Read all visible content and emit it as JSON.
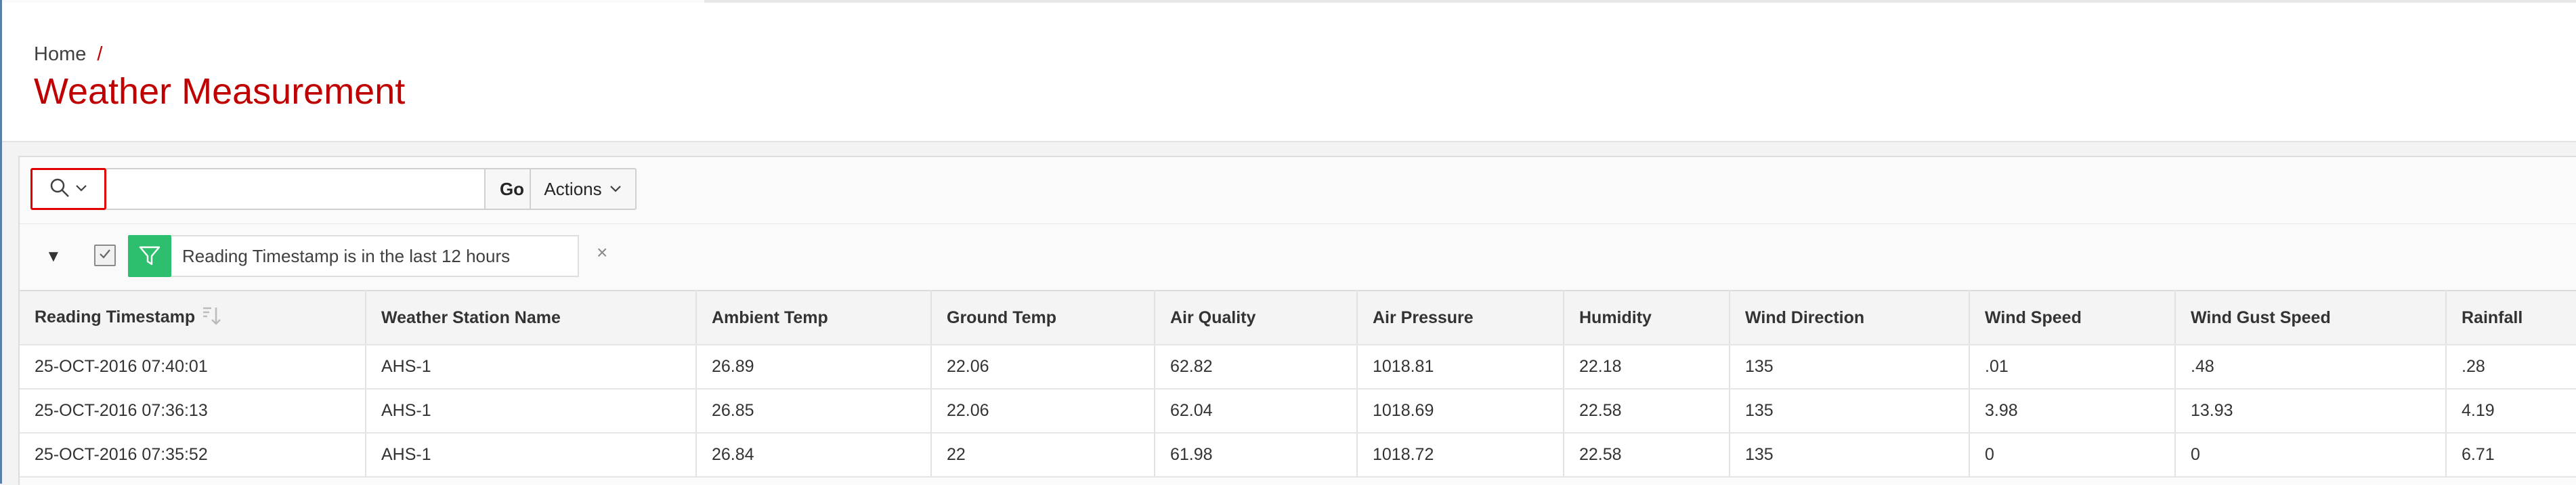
{
  "breadcrumb": {
    "home": "Home",
    "separator": "/"
  },
  "page": {
    "title": "Weather Measurement"
  },
  "toolbar": {
    "search_value": "",
    "go_label": "Go",
    "actions_label": "Actions"
  },
  "filter": {
    "text": "Reading Timestamp is in the last 12 hours",
    "enabled": true,
    "remove_symbol": "×",
    "toggle_symbol": "▼",
    "icon": "filter-funnel-icon",
    "color": "#2dbf6e"
  },
  "colors": {
    "accent": "#c00000",
    "search_highlight": "#e00000"
  },
  "table": {
    "columns": [
      "Reading Timestamp",
      "Weather Station Name",
      "Ambient Temp",
      "Ground Temp",
      "Air Quality",
      "Air Pressure",
      "Humidity",
      "Wind Direction",
      "Wind Speed",
      "Wind Gust Speed",
      "Rainfall"
    ],
    "rows": [
      [
        "25-OCT-2016 07:40:01",
        "AHS-1",
        "26.89",
        "22.06",
        "62.82",
        "1018.81",
        "22.18",
        "135",
        ".01",
        ".48",
        ".28"
      ],
      [
        "25-OCT-2016 07:36:13",
        "AHS-1",
        "26.85",
        "22.06",
        "62.04",
        "1018.69",
        "22.58",
        "135",
        "3.98",
        "13.93",
        "4.19"
      ],
      [
        "25-OCT-2016 07:35:52",
        "AHS-1",
        "26.84",
        "22",
        "61.98",
        "1018.72",
        "22.58",
        "135",
        "0",
        "0",
        "6.71"
      ]
    ]
  }
}
